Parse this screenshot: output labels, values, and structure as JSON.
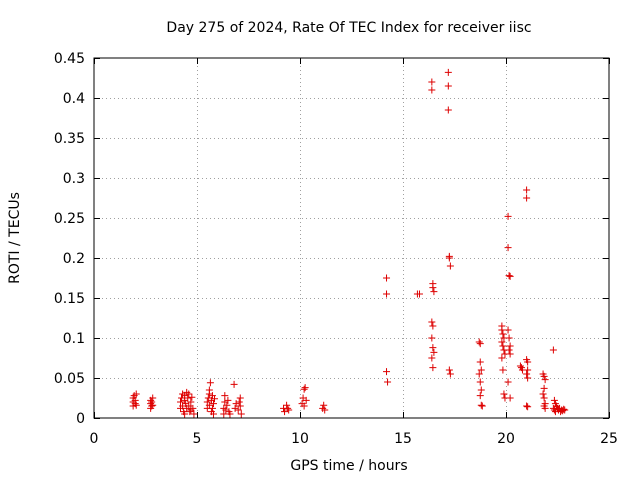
{
  "chart_data": {
    "type": "scatter",
    "title": "Day 275 of 2024, Rate Of TEC Index for receiver iisc",
    "xlabel": "GPS time / hours",
    "ylabel": "ROTI / TECUs",
    "xlim": [
      0,
      25
    ],
    "ylim": [
      0,
      0.45
    ],
    "grid": true,
    "legend": "none",
    "marker": "+",
    "colors": {
      "series": "#dd0000",
      "grid": "#a0a0a0",
      "axes": "#000000"
    },
    "x_ticks": [
      {
        "value": 0,
        "label": "0"
      },
      {
        "value": 5,
        "label": "5"
      },
      {
        "value": 10,
        "label": "10"
      },
      {
        "value": 15,
        "label": "15"
      },
      {
        "value": 20,
        "label": "20"
      },
      {
        "value": 25,
        "label": "25"
      }
    ],
    "y_ticks": [
      {
        "value": 0,
        "label": "0"
      },
      {
        "value": 0.05,
        "label": "0.05"
      },
      {
        "value": 0.1,
        "label": "0.1"
      },
      {
        "value": 0.15,
        "label": "0.15"
      },
      {
        "value": 0.2,
        "label": "0.2"
      },
      {
        "value": 0.25,
        "label": "0.25"
      },
      {
        "value": 0.3,
        "label": "0.3"
      },
      {
        "value": 0.35,
        "label": "0.35"
      },
      {
        "value": 0.4,
        "label": "0.4"
      },
      {
        "value": 0.45,
        "label": "0.45"
      }
    ],
    "series": [
      {
        "name": "ROTI",
        "points": [
          [
            1.9,
            0.015
          ],
          [
            1.9,
            0.02
          ],
          [
            1.9,
            0.025
          ],
          [
            1.95,
            0.028
          ],
          [
            2.0,
            0.018
          ],
          [
            2.0,
            0.022
          ],
          [
            2.05,
            0.03
          ],
          [
            2.05,
            0.016
          ],
          [
            2.75,
            0.012
          ],
          [
            2.75,
            0.018
          ],
          [
            2.75,
            0.022
          ],
          [
            2.8,
            0.015
          ],
          [
            2.8,
            0.02
          ],
          [
            2.85,
            0.025
          ],
          [
            2.85,
            0.016
          ],
          [
            4.2,
            0.012
          ],
          [
            4.2,
            0.02
          ],
          [
            4.25,
            0.025
          ],
          [
            4.3,
            0.03
          ],
          [
            4.3,
            0.015
          ],
          [
            4.35,
            0.008
          ],
          [
            4.4,
            0.022
          ],
          [
            4.4,
            0.028
          ],
          [
            4.45,
            0.018
          ],
          [
            4.5,
            0.012
          ],
          [
            4.55,
            0.025
          ],
          [
            4.6,
            0.03
          ],
          [
            4.6,
            0.015
          ],
          [
            4.65,
            0.008
          ],
          [
            4.7,
            0.02
          ],
          [
            4.75,
            0.026
          ],
          [
            4.8,
            0.012
          ],
          [
            4.85,
            0.005
          ],
          [
            4.5,
            0.032
          ],
          [
            4.4,
            0.005
          ],
          [
            4.7,
            0.01
          ],
          [
            5.5,
            0.012
          ],
          [
            5.5,
            0.02
          ],
          [
            5.55,
            0.025
          ],
          [
            5.6,
            0.03
          ],
          [
            5.6,
            0.016
          ],
          [
            5.65,
            0.044
          ],
          [
            5.7,
            0.022
          ],
          [
            5.7,
            0.008
          ],
          [
            5.75,
            0.028
          ],
          [
            5.75,
            0.012
          ],
          [
            5.8,
            0.018
          ],
          [
            5.8,
            0.005
          ],
          [
            5.85,
            0.024
          ],
          [
            5.6,
            0.035
          ],
          [
            6.3,
            0.005
          ],
          [
            6.3,
            0.012
          ],
          [
            6.35,
            0.02
          ],
          [
            6.35,
            0.028
          ],
          [
            6.4,
            0.01
          ],
          [
            6.45,
            0.016
          ],
          [
            6.5,
            0.022
          ],
          [
            6.55,
            0.008
          ],
          [
            6.6,
            0.005
          ],
          [
            6.8,
            0.042
          ],
          [
            6.85,
            0.012
          ],
          [
            6.9,
            0.018
          ],
          [
            7.0,
            0.01
          ],
          [
            7.05,
            0.02
          ],
          [
            7.1,
            0.025
          ],
          [
            7.1,
            0.015
          ],
          [
            7.15,
            0.005
          ],
          [
            9.2,
            0.012
          ],
          [
            9.25,
            0.008
          ],
          [
            9.35,
            0.016
          ],
          [
            9.4,
            0.012
          ],
          [
            9.45,
            0.01
          ],
          [
            10.1,
            0.018
          ],
          [
            10.15,
            0.025
          ],
          [
            10.2,
            0.015
          ],
          [
            10.2,
            0.036
          ],
          [
            10.25,
            0.038
          ],
          [
            10.3,
            0.022
          ],
          [
            11.1,
            0.012
          ],
          [
            11.15,
            0.016
          ],
          [
            11.2,
            0.01
          ],
          [
            14.2,
            0.175
          ],
          [
            14.2,
            0.155
          ],
          [
            14.2,
            0.058
          ],
          [
            14.25,
            0.045
          ],
          [
            15.7,
            0.155
          ],
          [
            15.8,
            0.155
          ],
          [
            16.4,
            0.42
          ],
          [
            16.4,
            0.41
          ],
          [
            16.45,
            0.168
          ],
          [
            16.45,
            0.163
          ],
          [
            16.5,
            0.158
          ],
          [
            16.4,
            0.12
          ],
          [
            16.45,
            0.115
          ],
          [
            16.4,
            0.1
          ],
          [
            16.45,
            0.088
          ],
          [
            16.5,
            0.082
          ],
          [
            16.4,
            0.075
          ],
          [
            16.45,
            0.063
          ],
          [
            17.2,
            0.432
          ],
          [
            17.2,
            0.415
          ],
          [
            17.2,
            0.385
          ],
          [
            17.25,
            0.202
          ],
          [
            17.25,
            0.2
          ],
          [
            17.3,
            0.19
          ],
          [
            17.25,
            0.06
          ],
          [
            17.3,
            0.055
          ],
          [
            18.7,
            0.095
          ],
          [
            18.75,
            0.093
          ],
          [
            18.75,
            0.07
          ],
          [
            18.8,
            0.06
          ],
          [
            18.7,
            0.055
          ],
          [
            18.75,
            0.045
          ],
          [
            18.8,
            0.035
          ],
          [
            18.75,
            0.028
          ],
          [
            18.8,
            0.016
          ],
          [
            18.85,
            0.015
          ],
          [
            19.8,
            0.115
          ],
          [
            19.8,
            0.11
          ],
          [
            19.85,
            0.105
          ],
          [
            19.9,
            0.1
          ],
          [
            19.8,
            0.095
          ],
          [
            19.85,
            0.09
          ],
          [
            19.9,
            0.085
          ],
          [
            19.95,
            0.08
          ],
          [
            19.8,
            0.075
          ],
          [
            19.85,
            0.06
          ],
          [
            19.9,
            0.03
          ],
          [
            19.95,
            0.025
          ],
          [
            20.1,
            0.252
          ],
          [
            20.1,
            0.213
          ],
          [
            20.15,
            0.178
          ],
          [
            20.2,
            0.177
          ],
          [
            20.1,
            0.11
          ],
          [
            20.15,
            0.1
          ],
          [
            20.2,
            0.09
          ],
          [
            20.15,
            0.085
          ],
          [
            20.2,
            0.08
          ],
          [
            20.1,
            0.045
          ],
          [
            20.2,
            0.025
          ],
          [
            20.7,
            0.065
          ],
          [
            20.75,
            0.063
          ],
          [
            20.8,
            0.06
          ],
          [
            21.0,
            0.285
          ],
          [
            21.0,
            0.275
          ],
          [
            21.0,
            0.073
          ],
          [
            21.05,
            0.07
          ],
          [
            21.05,
            0.06
          ],
          [
            21.0,
            0.055
          ],
          [
            21.05,
            0.05
          ],
          [
            21.0,
            0.015
          ],
          [
            21.05,
            0.014
          ],
          [
            21.8,
            0.055
          ],
          [
            21.85,
            0.052
          ],
          [
            21.9,
            0.048
          ],
          [
            21.85,
            0.037
          ],
          [
            21.8,
            0.03
          ],
          [
            21.85,
            0.025
          ],
          [
            21.9,
            0.018
          ],
          [
            21.9,
            0.012
          ],
          [
            21.85,
            0.015
          ],
          [
            22.3,
            0.085
          ],
          [
            22.35,
            0.022
          ],
          [
            22.4,
            0.018
          ],
          [
            22.45,
            0.015
          ],
          [
            22.5,
            0.012
          ],
          [
            22.3,
            0.012
          ],
          [
            22.35,
            0.01
          ],
          [
            22.4,
            0.008
          ],
          [
            22.55,
            0.01
          ],
          [
            22.6,
            0.012
          ],
          [
            22.65,
            0.008
          ],
          [
            22.7,
            0.01
          ],
          [
            22.75,
            0.009
          ],
          [
            22.8,
            0.011
          ],
          [
            22.85,
            0.01
          ]
        ]
      }
    ]
  }
}
